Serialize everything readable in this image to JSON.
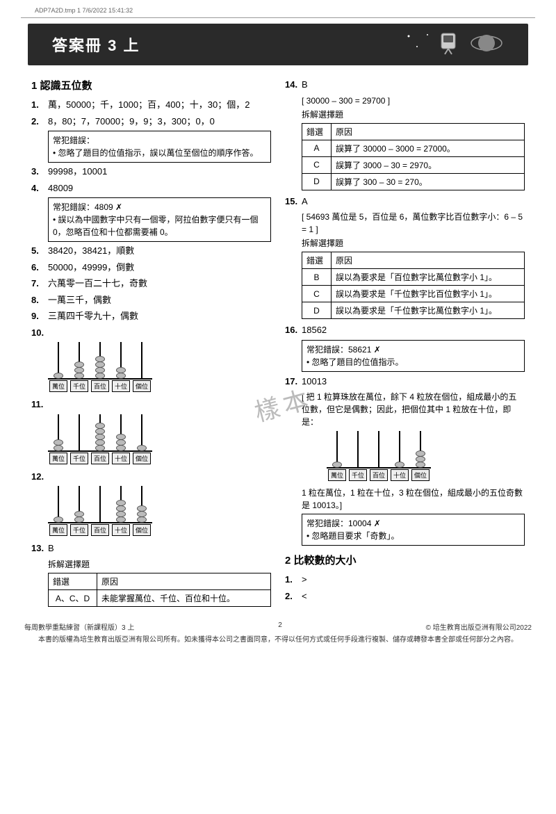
{
  "print_header": "ADP7A2D.tmp   1   7/6/2022   15:41:32",
  "banner_title": "答案冊 3 上",
  "watermark": "樣本",
  "left": {
    "section1_title": "1 認識五位數",
    "q1_num": "1.",
    "q1": "萬，50000；千，1000；百，400；十，30；個，2",
    "q2_num": "2.",
    "q2": "8，80；7，70000；9，9；3，300；0，0",
    "q2_box_title": "常犯錯誤：",
    "q2_box_line": "忽略了題目的位值指示，誤以萬位至個位的順序作答。",
    "q3_num": "3.",
    "q3": "99998，10001",
    "q4_num": "4.",
    "q4": "48009",
    "q4_box_title": "常犯錯誤：4809 ✗",
    "q4_box_line": "誤以為中國數字中只有一個零，阿拉伯數字便只有一個 0，忽略百位和十位都需要補 0。",
    "q5_num": "5.",
    "q5": "38420，38421，順數",
    "q6_num": "6.",
    "q6": "50000，49999，倒數",
    "q7_num": "7.",
    "q7": "六萬零一百二十七，奇數",
    "q8_num": "8.",
    "q8": "一萬三千，偶數",
    "q9_num": "9.",
    "q9": "三萬四千零九十，偶數",
    "q10_num": "10.",
    "q11_num": "11.",
    "q12_num": "12.",
    "rod_labels": [
      "萬位",
      "千位",
      "百位",
      "十位",
      "個位"
    ],
    "abacus10": [
      1,
      3,
      4,
      2,
      0
    ],
    "abacus11": [
      2,
      0,
      5,
      3,
      1
    ],
    "abacus12": [
      1,
      2,
      0,
      4,
      3
    ],
    "q13_num": "13.",
    "q13": "B",
    "q13_sub": "拆解選擇題",
    "q13_h1": "錯選",
    "q13_h2": "原因",
    "q13_c1": "A、C、D",
    "q13_c2": "未能掌握萬位、千位、百位和十位。"
  },
  "right": {
    "q14_num": "14.",
    "q14": "B",
    "q14_sub1": "[ 30000 – 300 = 29700 ]",
    "q14_sub2": "拆解選擇題",
    "q14_h1": "錯選",
    "q14_h2": "原因",
    "q14_rows": [
      {
        "c": "A",
        "r": "誤算了 30000 – 3000 = 27000。"
      },
      {
        "c": "C",
        "r": "誤算了 3000 – 30 = 2970。"
      },
      {
        "c": "D",
        "r": "誤算了 300 – 30 = 270。"
      }
    ],
    "q15_num": "15.",
    "q15": "A",
    "q15_sub1": "[ 54693 萬位是 5，百位是 6，萬位數字比百位數字小：6 – 5 = 1 ]",
    "q15_sub2": "拆解選擇題",
    "q15_h1": "錯選",
    "q15_h2": "原因",
    "q15_rows": [
      {
        "c": "B",
        "r": "誤以為要求是「百位數字比萬位數字小 1」。"
      },
      {
        "c": "C",
        "r": "誤以為要求是「千位數字比百位數字小 1」。"
      },
      {
        "c": "D",
        "r": "誤以為要求是「千位數字比萬位數字小 1」。"
      }
    ],
    "q16_num": "16.",
    "q16": "18562",
    "q16_box_title": "常犯錯誤：58621 ✗",
    "q16_box_line": "忽略了題目的位值指示。",
    "q17_num": "17.",
    "q17": "10013",
    "q17_sub1": "[ 把 1 粒算珠放在萬位，餘下 4 粒放在個位，組成最小的五位數，但它是偶數；因此，把個位其中 1 粒放在十位，即是：",
    "abacus17": [
      1,
      0,
      0,
      1,
      3
    ],
    "q17_sub2": "1 粒在萬位，1 粒在十位，3 粒在個位，組成最小的五位奇數是 10013。]",
    "q17_box_title": "常犯錯誤：10004 ✗",
    "q17_box_line": "忽略題目要求「奇數」。",
    "section2_title": "2 比較數的大小",
    "s2q1_num": "1.",
    "s2q1": ">",
    "s2q2_num": "2.",
    "s2q2": "<"
  },
  "footer": {
    "left": "每周數學重點練習（新課程版）3 上",
    "page": "2",
    "right": "© 培生教育出版亞洲有限公司2022",
    "line2": "本書的版權為培生教育出版亞洲有限公司所有。如未獲得本公司之書面同意，不得以任何方式或任何手段進行複製、儲存或轉發本書全部或任何部分之內容。"
  }
}
